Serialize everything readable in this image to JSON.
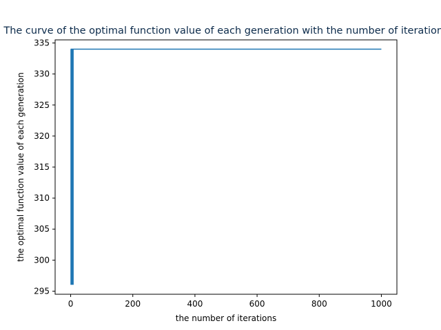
{
  "chart_data": {
    "type": "line",
    "title": "The curve of the optimal function value of each generation with the number of iterations",
    "xlabel": "the number of iterations",
    "ylabel": "the optimal function value of each generation",
    "xlim": [
      -50,
      1050
    ],
    "ylim": [
      294.5,
      335.5
    ],
    "xticks": [
      0,
      200,
      400,
      600,
      800,
      1000
    ],
    "yticks": [
      295,
      300,
      305,
      310,
      315,
      320,
      325,
      330,
      335
    ],
    "xtick_labels": [
      "0",
      "200",
      "400",
      "600",
      "800",
      "1000"
    ],
    "ytick_labels": [
      "295",
      "300",
      "305",
      "310",
      "315",
      "320",
      "325",
      "330",
      "335"
    ],
    "grid": false,
    "legend": "none",
    "line_color": "#1f77b4",
    "series": [
      {
        "x": [
          0,
          1,
          1,
          2,
          2,
          3,
          3,
          4,
          4,
          5,
          5,
          6,
          6,
          7,
          7,
          8,
          8,
          1000
        ],
        "y": [
          334,
          334,
          296.1,
          296.1,
          334,
          334,
          296.1,
          296.1,
          334,
          334,
          296.1,
          296.1,
          334,
          334,
          296.1,
          296.1,
          334,
          334
        ]
      }
    ]
  }
}
